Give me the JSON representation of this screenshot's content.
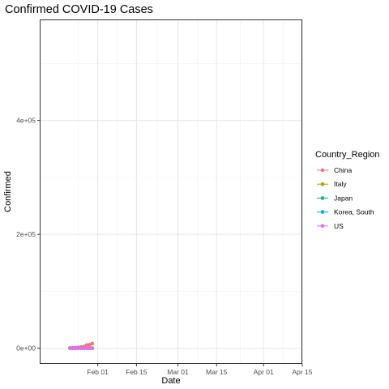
{
  "chart_data": {
    "type": "line",
    "title": "Confirmed COVID-19 Cases",
    "xlabel": "Date",
    "ylabel": "Confirmed",
    "xlim": [
      "2020-01-11",
      "2020-04-15"
    ],
    "ylim": [
      -27500,
      577500
    ],
    "x_ticks": [
      {
        "date": "2020-02-01",
        "label": "Feb 01"
      },
      {
        "date": "2020-02-15",
        "label": "Feb 15"
      },
      {
        "date": "2020-03-01",
        "label": "Mar 01"
      },
      {
        "date": "2020-03-15",
        "label": "Mar 15"
      },
      {
        "date": "2020-04-01",
        "label": "Apr 01"
      },
      {
        "date": "2020-04-15",
        "label": "Apr 15"
      }
    ],
    "y_ticks": [
      {
        "value": 0,
        "label": "0e+00"
      },
      {
        "value": 200000,
        "label": "2e+05"
      },
      {
        "value": 400000,
        "label": "4e+05"
      }
    ],
    "grid": true,
    "legend": {
      "title": "Country_Region",
      "position": "right"
    },
    "series": [
      {
        "name": "China",
        "color": "#F8766D",
        "points": [
          [
            "2020-01-22",
            548
          ],
          [
            "2020-01-23",
            643
          ],
          [
            "2020-01-24",
            920
          ],
          [
            "2020-01-25",
            1406
          ],
          [
            "2020-01-26",
            2075
          ],
          [
            "2020-01-27",
            2877
          ],
          [
            "2020-01-28",
            5509
          ],
          [
            "2020-01-29",
            6087
          ],
          [
            "2020-01-30",
            8141
          ]
        ]
      },
      {
        "name": "Italy",
        "color": "#A3A500",
        "points": [
          [
            "2020-01-22",
            0
          ],
          [
            "2020-01-23",
            0
          ],
          [
            "2020-01-24",
            0
          ],
          [
            "2020-01-25",
            0
          ],
          [
            "2020-01-26",
            0
          ],
          [
            "2020-01-27",
            0
          ],
          [
            "2020-01-28",
            0
          ],
          [
            "2020-01-29",
            0
          ],
          [
            "2020-01-30",
            0
          ]
        ]
      },
      {
        "name": "Japan",
        "color": "#00BF7D",
        "points": [
          [
            "2020-01-22",
            2
          ],
          [
            "2020-01-23",
            2
          ],
          [
            "2020-01-24",
            2
          ],
          [
            "2020-01-25",
            2
          ],
          [
            "2020-01-26",
            4
          ],
          [
            "2020-01-27",
            4
          ],
          [
            "2020-01-28",
            7
          ],
          [
            "2020-01-29",
            7
          ],
          [
            "2020-01-30",
            11
          ]
        ]
      },
      {
        "name": "Korea, South",
        "color": "#00B0F6",
        "points": [
          [
            "2020-01-22",
            1
          ],
          [
            "2020-01-23",
            1
          ],
          [
            "2020-01-24",
            2
          ],
          [
            "2020-01-25",
            2
          ],
          [
            "2020-01-26",
            3
          ],
          [
            "2020-01-27",
            4
          ],
          [
            "2020-01-28",
            4
          ],
          [
            "2020-01-29",
            4
          ],
          [
            "2020-01-30",
            4
          ]
        ]
      },
      {
        "name": "US",
        "color": "#E76BF3",
        "points": [
          [
            "2020-01-22",
            1
          ],
          [
            "2020-01-23",
            1
          ],
          [
            "2020-01-24",
            2
          ],
          [
            "2020-01-25",
            2
          ],
          [
            "2020-01-26",
            5
          ],
          [
            "2020-01-27",
            5
          ],
          [
            "2020-01-28",
            5
          ],
          [
            "2020-01-29",
            5
          ],
          [
            "2020-01-30",
            5
          ]
        ]
      }
    ]
  }
}
